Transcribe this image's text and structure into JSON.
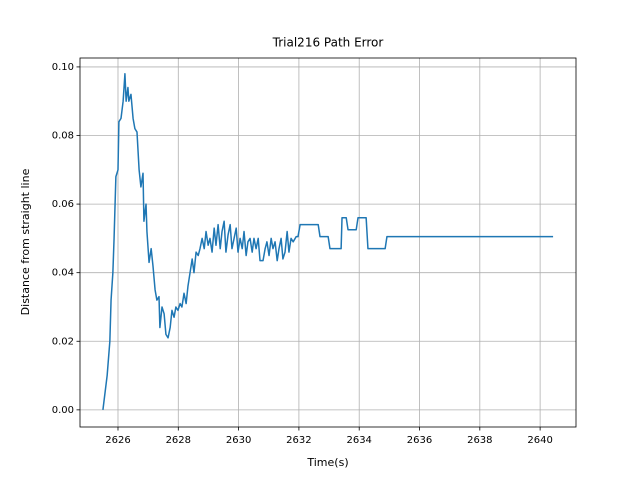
{
  "chart_data": {
    "type": "line",
    "title": "Trial216 Path Error",
    "x_label": "Time(s)",
    "y_label": "Distance from straight line",
    "x": [
      2625.5,
      2625.64,
      2625.73,
      2625.77,
      2625.83,
      2625.87,
      2625.93,
      2626.0,
      2626.03,
      2626.1,
      2626.17,
      2626.23,
      2626.27,
      2626.33,
      2626.36,
      2626.43,
      2626.5,
      2626.56,
      2626.63,
      2626.7,
      2626.76,
      2626.83,
      2626.86,
      2626.93,
      2626.96,
      2627.03,
      2627.1,
      2627.16,
      2627.23,
      2627.29,
      2627.36,
      2627.39,
      2627.46,
      2627.53,
      2627.59,
      2627.66,
      2627.73,
      2627.79,
      2627.86,
      2627.92,
      2627.99,
      2628.06,
      2628.12,
      2628.19,
      2628.26,
      2628.32,
      2628.39,
      2628.46,
      2628.52,
      2628.59,
      2628.66,
      2628.72,
      2628.79,
      2628.86,
      2628.92,
      2628.99,
      2629.05,
      2629.12,
      2629.19,
      2629.25,
      2629.32,
      2629.39,
      2629.45,
      2629.52,
      2629.58,
      2629.65,
      2629.72,
      2629.78,
      2629.85,
      2629.92,
      2629.98,
      2630.05,
      2630.12,
      2630.18,
      2630.25,
      2630.31,
      2630.38,
      2630.45,
      2630.51,
      2630.58,
      2630.65,
      2630.71,
      2630.81,
      2630.88,
      2630.94,
      2631.01,
      2631.08,
      2631.14,
      2631.21,
      2631.28,
      2631.34,
      2631.41,
      2631.47,
      2631.54,
      2631.61,
      2631.67,
      2631.74,
      2631.81,
      2631.91,
      2631.97,
      2632.04,
      2632.64,
      2632.7,
      2632.97,
      2633.03,
      2633.4,
      2633.43,
      2633.57,
      2633.63,
      2633.9,
      2633.96,
      2634.23,
      2634.29,
      2634.86,
      2634.92,
      2640.43
    ],
    "series": [
      {
        "name": "path error",
        "color": "#1f77b4",
        "values": [
          0,
          0.01,
          0.02,
          0.032,
          0.04,
          0.05,
          0.068,
          0.07,
          0.084,
          0.085,
          0.09,
          0.098,
          0.09,
          0.094,
          0.09,
          0.092,
          0.085,
          0.082,
          0.081,
          0.07,
          0.065,
          0.069,
          0.055,
          0.06,
          0.052,
          0.043,
          0.047,
          0.042,
          0.035,
          0.032,
          0.033,
          0.024,
          0.03,
          0.028,
          0.022,
          0.021,
          0.024,
          0.029,
          0.027,
          0.03,
          0.029,
          0.031,
          0.03,
          0.034,
          0.031,
          0.036,
          0.04,
          0.044,
          0.04,
          0.046,
          0.045,
          0.047,
          0.05,
          0.047,
          0.052,
          0.048,
          0.05,
          0.046,
          0.053,
          0.048,
          0.054,
          0.047,
          0.052,
          0.055,
          0.046,
          0.051,
          0.054,
          0.047,
          0.05,
          0.053,
          0.046,
          0.05,
          0.047,
          0.052,
          0.045,
          0.049,
          0.05,
          0.046,
          0.05,
          0.047,
          0.05,
          0.0435,
          0.0435,
          0.047,
          0.049,
          0.045,
          0.05,
          0.047,
          0.049,
          0.0435,
          0.047,
          0.05,
          0.044,
          0.046,
          0.052,
          0.046,
          0.05,
          0.049,
          0.0505,
          0.0505,
          0.054,
          0.054,
          0.0505,
          0.0505,
          0.047,
          0.047,
          0.056,
          0.056,
          0.0525,
          0.0525,
          0.056,
          0.056,
          0.047,
          0.047,
          0.0505,
          0.0505
        ]
      }
    ],
    "xlim": [
      2624.74,
      2641.19
    ],
    "ylim": [
      -0.005,
      0.1026
    ],
    "xticks": [
      2626,
      2628,
      2630,
      2632,
      2634,
      2636,
      2638,
      2640
    ],
    "yticks": [
      {
        "value": 0,
        "label": "0.00"
      },
      {
        "value": 0.02,
        "label": "0.02"
      },
      {
        "value": 0.04,
        "label": "0.04"
      },
      {
        "value": 0.06,
        "label": "0.06"
      },
      {
        "value": 0.08,
        "label": "0.08"
      },
      {
        "value": 0.1,
        "label": "0.10"
      }
    ],
    "grid": true
  }
}
